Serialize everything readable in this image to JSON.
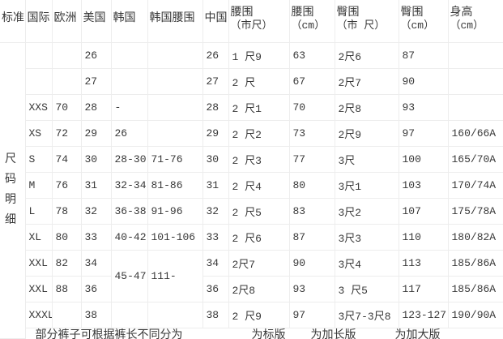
{
  "colors": {
    "background": "#ffffff",
    "gridline": "#ededed",
    "text": "#383838"
  },
  "table": {
    "side_label": "尺码明细",
    "headers": [
      {
        "line1": "标准"
      },
      {
        "line1": "国际"
      },
      {
        "line1": "欧洲"
      },
      {
        "line1": "美国"
      },
      {
        "line1": "韩国"
      },
      {
        "line1": "韩国腰围"
      },
      {
        "line1": "中国"
      },
      {
        "line1": "腰围",
        "line2": "（市尺）"
      },
      {
        "line1": "腰围",
        "line2": "（cm）"
      },
      {
        "line1": "臀围",
        "line2": "（市 尺）"
      },
      {
        "line1": "臀围",
        "line2": "（cm）"
      },
      {
        "line1": "身高",
        "line2": "（cm）"
      }
    ],
    "rows": [
      [
        "",
        "",
        "26",
        "",
        "",
        "26",
        "1 尺9",
        "63",
        "2尺6",
        "87",
        ""
      ],
      [
        "",
        "",
        "27",
        "",
        "",
        "27",
        "2 尺",
        "67",
        "2尺7",
        "90",
        ""
      ],
      [
        "XXS",
        "70",
        "28",
        "-",
        "",
        "28",
        "2 尺1",
        "70",
        "2尺8",
        "93",
        ""
      ],
      [
        "XS",
        "72",
        "29",
        "26",
        "",
        "29",
        "2 尺2",
        "73",
        "2尺9",
        "97",
        "160/66A"
      ],
      [
        "S",
        "74",
        "30",
        "28-30",
        "71-76",
        "30",
        "2 尺3",
        "77",
        "3尺",
        "100",
        "165/70A"
      ],
      [
        "M",
        "76",
        "31",
        "32-34",
        "81-86",
        "31",
        "2 尺4",
        "80",
        "3尺1",
        "103",
        "170/74A"
      ],
      [
        "L",
        "78",
        "32",
        "36-38",
        "91-96",
        "32",
        "2 尺5",
        "83",
        "3尺2",
        "107",
        "175/78A"
      ],
      [
        "XL",
        "80",
        "33",
        "40-42",
        "101-106",
        "33",
        "2 尺6",
        "87",
        "3尺3",
        "110",
        "180/82A"
      ],
      [
        "XXL",
        "82",
        "34",
        {
          "v": "45-47",
          "rowspan": 2
        },
        {
          "v": "111-",
          "rowspan": 2
        },
        "34",
        "2尺7",
        "90",
        "3尺4",
        "113",
        "185/86A"
      ],
      [
        "XXL",
        "88",
        "36",
        null,
        null,
        "36",
        "2尺8",
        "93",
        "3 尺5",
        "117",
        "185/86A"
      ],
      [
        "XXXL",
        "",
        "38",
        "",
        "",
        "38",
        "2 尺9",
        "97",
        "3尺7-3尺8",
        "123-127",
        "190/90A"
      ]
    ],
    "note_segments": [
      {
        "text": "部分裤子可根据裤长不同分为"
      },
      {
        "text": "为标版"
      },
      {
        "text": "为加长版"
      },
      {
        "text": "为加大版"
      }
    ]
  }
}
